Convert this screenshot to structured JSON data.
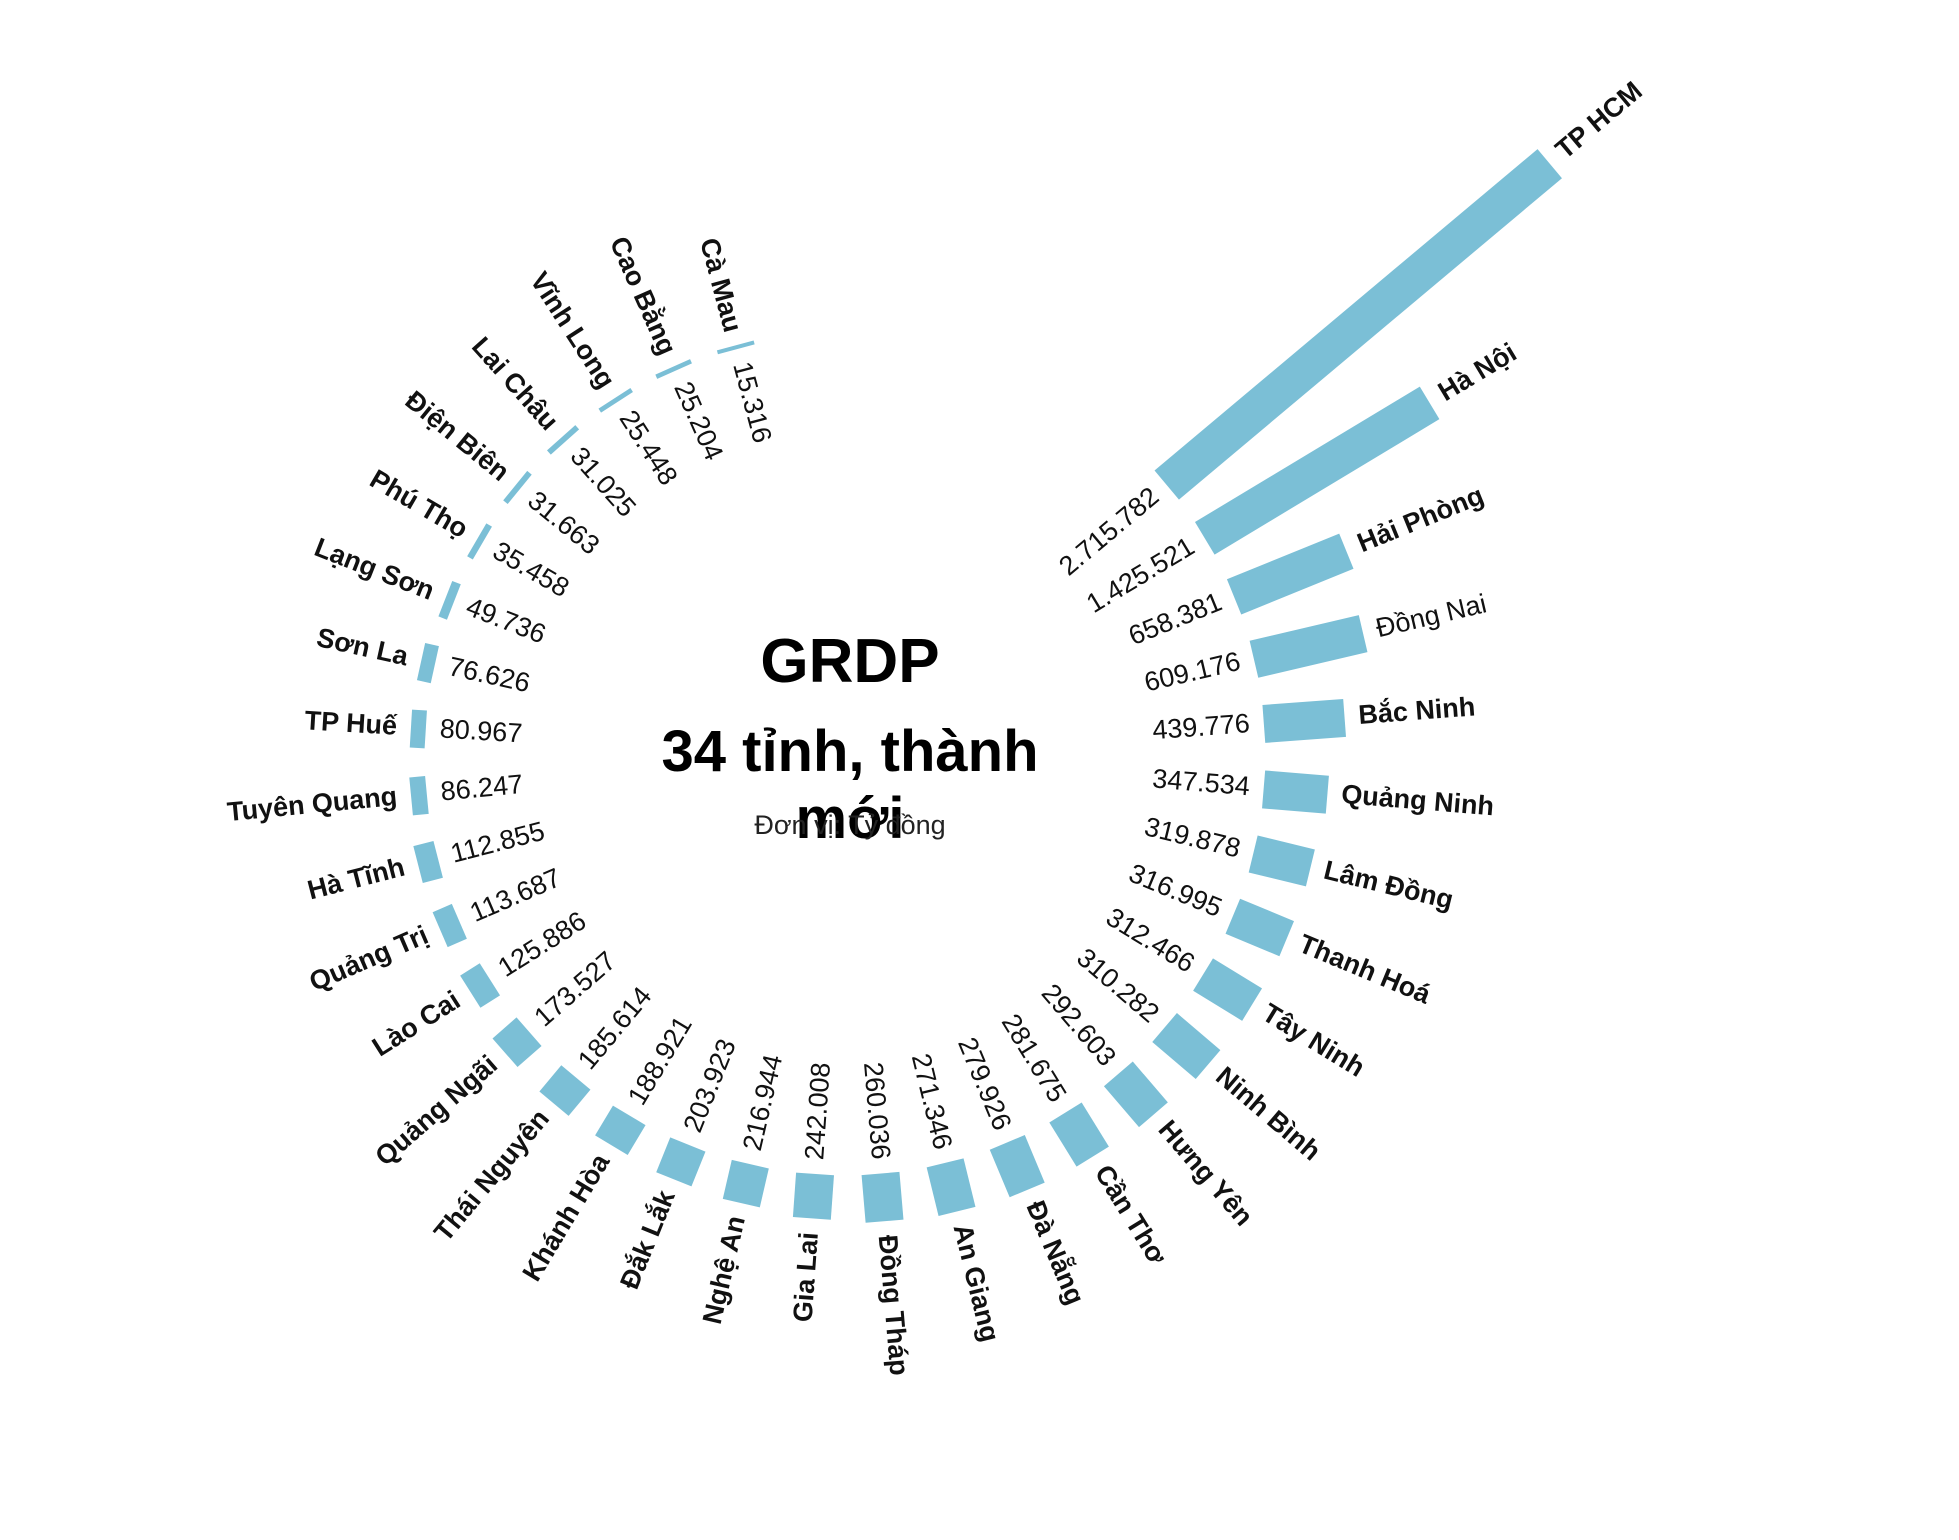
{
  "header": {
    "title": "GRDP",
    "subtitle": "34 tỉnh, thành mới",
    "unit": "Đơn vị: Tỷ đồng"
  },
  "colors": {
    "bar": "#7bbfd6",
    "text": "#111111"
  },
  "chart_data": {
    "type": "bar",
    "layout": "radial",
    "title": "GRDP",
    "subtitle": "34 tỉnh, thành mới",
    "unit": "Tỷ đồng",
    "categories": [
      "TP HCM",
      "Hà Nội",
      "Hải Phòng",
      "Đồng Nai",
      "Bắc Ninh",
      "Quảng Ninh",
      "Lâm Đồng",
      "Thanh Hoá",
      "Tây Ninh",
      "Ninh Bình",
      "Hưng Yên",
      "Cần Thơ",
      "Đà Nẵng",
      "An Giang",
      "Đồng Tháp",
      "Gia Lai",
      "Nghệ An",
      "Đắk Lắk",
      "Khánh Hòa",
      "Thái Nguyên",
      "Quảng Ngãi",
      "Lào Cai",
      "Quảng Trị",
      "Hà Tĩnh",
      "Tuyên Quang",
      "TP Huế",
      "Sơn La",
      "Lạng Sơn",
      "Phú Thọ",
      "Điện Biên",
      "Lai Châu",
      "Vĩnh Long",
      "Cao Bằng",
      "Cà Mau"
    ],
    "values": [
      2715782,
      1425521,
      658381,
      609176,
      439776,
      347534,
      319878,
      316995,
      312466,
      310282,
      292603,
      281675,
      279926,
      271346,
      260036,
      242008,
      216944,
      203923,
      188921,
      185614,
      173527,
      125886,
      113687,
      112855,
      86247,
      80967,
      76626,
      49736,
      35458,
      31663,
      31025,
      25448,
      25204,
      15316
    ],
    "value_labels": [
      "2.715.782",
      "1.425.521",
      "658.381",
      "609.176",
      "439.776",
      "347.534",
      "319.878",
      "316.995",
      "312.466",
      "310.282",
      "292.603",
      "281.675",
      "279.926",
      "271.346",
      "260.036",
      "242.008",
      "216.944",
      "203.923",
      "188.921",
      "185.614",
      "173.527",
      "125.886",
      "113.687",
      "112.855",
      "86.247",
      "80.967",
      "76.626",
      "49.736",
      "35.458",
      "31.663",
      "31.025",
      "25.448",
      "25.204",
      "15.316"
    ],
    "label_styles": [
      "bold",
      "bold",
      "bold",
      "normal",
      "bold",
      "bold",
      "bold",
      "bold",
      "bold",
      "bold",
      "bold",
      "bold",
      "bold",
      "bold",
      "bold",
      "bold",
      "bold",
      "bold",
      "bold",
      "bold",
      "bold",
      "bold",
      "bold",
      "bold",
      "bold",
      "bold",
      "bold",
      "bold",
      "bold",
      "bold",
      "bold",
      "bold",
      "bold",
      "bold"
    ],
    "legend": "none",
    "grid": false
  }
}
